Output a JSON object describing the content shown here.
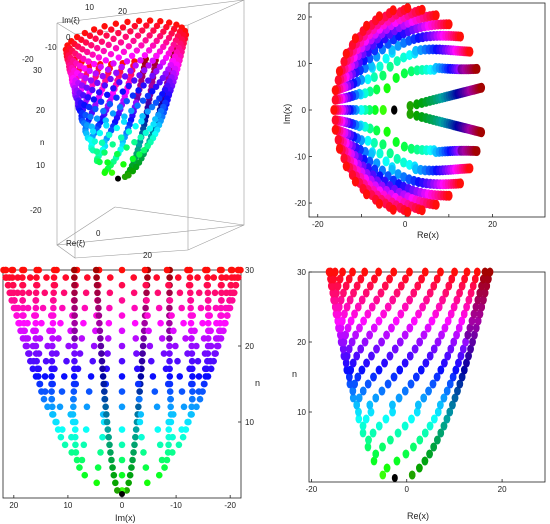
{
  "chart_data": [
    {
      "id": "3d",
      "type": "scatter",
      "title": "",
      "axes": {
        "re_label": "Re(ξ)",
        "im_label": "Im(ξ)",
        "n_label": "n",
        "re_ticks": [
          "-20",
          "0",
          "20"
        ],
        "im_ticks": [
          "0",
          "-10",
          "-20",
          "10",
          "20"
        ],
        "n_ticks": [
          "30",
          "20",
          "10"
        ],
        "re_range": [
          -20,
          30
        ],
        "im_range": [
          -22,
          22
        ],
        "n_range": [
          0,
          30
        ]
      },
      "marked_point": {
        "re": -2.5,
        "im": 0,
        "n": 0,
        "color": "#000000"
      }
    },
    {
      "id": "re-im",
      "type": "scatter",
      "xlabel": "Re(x)",
      "ylabel": "Im(x)",
      "x_ticks": [
        -20,
        -10,
        0,
        10,
        20
      ],
      "x_tick_labels": [
        "-20",
        "",
        "0",
        "",
        "20"
      ],
      "y_ticks": [
        -20,
        -10,
        0,
        10,
        20
      ],
      "y_tick_labels": [
        "-20",
        "-10",
        "0",
        "10",
        "20"
      ],
      "xlim": [
        -22,
        32
      ],
      "ylim": [
        -23,
        23
      ],
      "marked_point": {
        "x": -2.5,
        "y": 0,
        "color": "#000000"
      }
    },
    {
      "id": "im-n",
      "type": "scatter",
      "xlabel": "Im(x)",
      "ylabel": "n",
      "x_ticks": [
        20,
        10,
        0,
        -10,
        -20
      ],
      "x_tick_labels": [
        "20",
        "10",
        "0",
        "-10",
        "-20"
      ],
      "y_ticks": [
        10,
        20,
        30
      ],
      "y_tick_labels": [
        "10",
        "20",
        "30"
      ],
      "xlim": [
        22,
        -22
      ],
      "ylim": [
        0,
        30
      ],
      "marked_point": {
        "x": 0,
        "y": 0,
        "color": "#000000"
      }
    },
    {
      "id": "re-n",
      "type": "scatter",
      "xlabel": "Re(x)",
      "ylabel": "n",
      "x_ticks": [
        -20,
        0,
        20
      ],
      "x_tick_labels": [
        "-20",
        "0",
        "20"
      ],
      "y_ticks": [
        10,
        20,
        30
      ],
      "y_tick_labels": [
        "10",
        "20",
        "30"
      ],
      "xlim": [
        -20.5,
        29
      ],
      "ylim": [
        0,
        30
      ],
      "marked_point": {
        "x": -2.5,
        "y": 0,
        "color": "#000000"
      }
    }
  ]
}
